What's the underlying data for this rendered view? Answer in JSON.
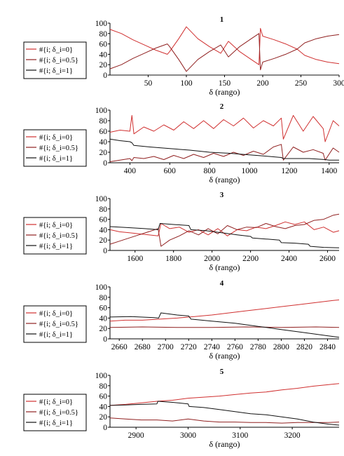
{
  "chart_data": [
    {
      "type": "line",
      "title": "1",
      "xlabel": "δ (rango)",
      "ylabel": "",
      "xlim": [
        0,
        300
      ],
      "ylim": [
        0,
        100
      ],
      "xticks": [
        50,
        100,
        150,
        200,
        250,
        300
      ],
      "yticks": [
        0,
        20,
        40,
        60,
        80,
        100
      ],
      "legend": {
        "placement": "left-outside"
      },
      "series": [
        {
          "name": "#{i; δ_i=0}",
          "color": "#d03030",
          "x": [
            0,
            15,
            30,
            45,
            60,
            75,
            78,
            90,
            100,
            115,
            130,
            145,
            155,
            170,
            185,
            195,
            197,
            200,
            215,
            230,
            245,
            255,
            270,
            285,
            300
          ],
          "values": [
            88,
            80,
            68,
            58,
            48,
            40,
            45,
            70,
            93,
            70,
            55,
            42,
            65,
            45,
            30,
            20,
            90,
            75,
            68,
            60,
            50,
            38,
            30,
            25,
            22
          ]
        },
        {
          "name": "#{i; δ_i=0.5}",
          "color": "#902020",
          "x": [
            0,
            15,
            30,
            45,
            60,
            75,
            78,
            90,
            100,
            115,
            130,
            145,
            155,
            170,
            185,
            195,
            197,
            200,
            215,
            230,
            245,
            255,
            270,
            285,
            300
          ],
          "values": [
            12,
            20,
            32,
            42,
            52,
            60,
            55,
            30,
            7,
            30,
            45,
            58,
            35,
            55,
            70,
            80,
            10,
            25,
            32,
            40,
            50,
            62,
            70,
            75,
            78
          ]
        },
        {
          "name": "#{i; δ_i=1}",
          "color": "#111111",
          "x": [
            0,
            100,
            200,
            300
          ],
          "values": [
            0,
            0,
            0,
            0
          ]
        }
      ]
    },
    {
      "type": "line",
      "title": "2",
      "xlabel": "δ (rango)",
      "ylabel": "",
      "xlim": [
        300,
        1450
      ],
      "ylim": [
        0,
        100
      ],
      "xticks": [
        400,
        600,
        800,
        1000,
        1200,
        1400
      ],
      "yticks": [
        0,
        20,
        40,
        60,
        80,
        100
      ],
      "legend": {
        "placement": "left-outside"
      },
      "series": [
        {
          "name": "#{i; δ_i=0}",
          "color": "#d03030",
          "x": [
            300,
            350,
            400,
            410,
            420,
            470,
            520,
            570,
            620,
            670,
            720,
            770,
            820,
            870,
            920,
            970,
            1020,
            1070,
            1120,
            1160,
            1170,
            1220,
            1270,
            1320,
            1370,
            1380,
            1420,
            1450
          ],
          "values": [
            58,
            62,
            60,
            90,
            55,
            68,
            60,
            72,
            62,
            78,
            65,
            80,
            65,
            82,
            70,
            85,
            66,
            80,
            70,
            85,
            45,
            90,
            60,
            88,
            65,
            40,
            80,
            70
          ]
        },
        {
          "name": "#{i; δ_i=0.5}",
          "color": "#902020",
          "x": [
            300,
            350,
            400,
            410,
            420,
            470,
            520,
            570,
            620,
            670,
            720,
            770,
            820,
            870,
            920,
            970,
            1020,
            1070,
            1120,
            1160,
            1170,
            1220,
            1270,
            1320,
            1370,
            1380,
            1420,
            1450
          ],
          "values": [
            2,
            5,
            8,
            4,
            10,
            8,
            12,
            6,
            14,
            8,
            16,
            10,
            18,
            12,
            20,
            14,
            22,
            16,
            30,
            35,
            5,
            30,
            20,
            25,
            18,
            5,
            28,
            20
          ]
        },
        {
          "name": "#{i; δ_i=1}",
          "color": "#111111",
          "x": [
            300,
            350,
            400,
            410,
            420,
            500,
            600,
            700,
            800,
            900,
            1000,
            1100,
            1160,
            1170,
            1300,
            1380,
            1400,
            1450
          ],
          "values": [
            45,
            42,
            40,
            38,
            33,
            30,
            27,
            24,
            20,
            18,
            15,
            12,
            10,
            8,
            8,
            6,
            5,
            5
          ]
        }
      ]
    },
    {
      "type": "line",
      "title": "3",
      "xlabel": "δ (rango)",
      "ylabel": "",
      "xlim": [
        1470,
        2660
      ],
      "ylim": [
        0,
        100
      ],
      "xticks": [
        1600,
        1800,
        2000,
        2200,
        2400,
        2600
      ],
      "yticks": [
        0,
        20,
        40,
        60,
        80,
        100
      ],
      "legend": {
        "placement": "left-outside"
      },
      "series": [
        {
          "name": "#{i; δ_i=0}",
          "color": "#d03030",
          "x": [
            1470,
            1520,
            1570,
            1620,
            1670,
            1720,
            1735,
            1780,
            1830,
            1880,
            1930,
            1980,
            2030,
            2080,
            2130,
            2180,
            2230,
            2280,
            2330,
            2380,
            2430,
            2480,
            2530,
            2580,
            2630,
            2660
          ],
          "values": [
            40,
            36,
            34,
            32,
            30,
            28,
            52,
            42,
            45,
            35,
            40,
            30,
            42,
            28,
            40,
            38,
            45,
            42,
            48,
            55,
            50,
            55,
            40,
            45,
            35,
            38
          ]
        },
        {
          "name": "#{i; δ_i=0.5}",
          "color": "#902020",
          "x": [
            1470,
            1520,
            1570,
            1620,
            1670,
            1720,
            1735,
            1780,
            1830,
            1880,
            1930,
            1980,
            2030,
            2080,
            2130,
            2180,
            2230,
            2280,
            2330,
            2380,
            2430,
            2480,
            2530,
            2580,
            2630,
            2660
          ],
          "values": [
            12,
            18,
            24,
            30,
            36,
            42,
            8,
            20,
            28,
            38,
            30,
            42,
            32,
            48,
            40,
            45,
            44,
            52,
            46,
            42,
            48,
            50,
            58,
            60,
            68,
            70
          ]
        },
        {
          "name": "#{i; δ_i=1}",
          "color": "#111111",
          "x": [
            1470,
            1560,
            1650,
            1720,
            1730,
            1800,
            1880,
            1890,
            1970,
            2050,
            2130,
            2200,
            2210,
            2280,
            2350,
            2360,
            2430,
            2500,
            2510,
            2580,
            2660
          ],
          "values": [
            46,
            44,
            42,
            40,
            52,
            50,
            48,
            40,
            38,
            34,
            30,
            27,
            24,
            22,
            20,
            15,
            14,
            12,
            8,
            6,
            5
          ]
        }
      ]
    },
    {
      "type": "line",
      "title": "4",
      "xlabel": "δ (rango)",
      "ylabel": "",
      "xlim": [
        2652,
        2850
      ],
      "ylim": [
        0,
        100
      ],
      "xticks": [
        2660,
        2680,
        2700,
        2720,
        2740,
        2760,
        2780,
        2800,
        2820,
        2840
      ],
      "yticks": [
        0,
        20,
        40,
        60,
        80,
        100
      ],
      "legend": {
        "placement": "left-outside"
      },
      "series": [
        {
          "name": "#{i; δ_i=0}",
          "color": "#d03030",
          "x": [
            2652,
            2665,
            2680,
            2695,
            2710,
            2725,
            2740,
            2755,
            2770,
            2785,
            2800,
            2815,
            2830,
            2845,
            2850
          ],
          "values": [
            34,
            36,
            36,
            38,
            40,
            43,
            46,
            50,
            54,
            58,
            62,
            66,
            70,
            74,
            75
          ]
        },
        {
          "name": "#{i; δ_i=0.5}",
          "color": "#902020",
          "x": [
            2652,
            2680,
            2710,
            2740,
            2770,
            2800,
            2830,
            2850
          ],
          "values": [
            22,
            23,
            22,
            22,
            23,
            22,
            23,
            22
          ]
        },
        {
          "name": "#{i; δ_i=1}",
          "color": "#111111",
          "x": [
            2652,
            2670,
            2690,
            2694,
            2696,
            2710,
            2720,
            2722,
            2740,
            2760,
            2780,
            2800,
            2820,
            2840,
            2850
          ],
          "values": [
            42,
            43,
            41,
            40,
            50,
            46,
            44,
            38,
            34,
            30,
            24,
            18,
            12,
            6,
            3
          ]
        }
      ]
    },
    {
      "type": "line",
      "title": "5",
      "xlabel": "δ (rango)",
      "ylabel": "",
      "xlim": [
        2850,
        3290
      ],
      "ylim": [
        0,
        100
      ],
      "xticks": [
        2900,
        3000,
        3100,
        3200
      ],
      "yticks": [
        0,
        20,
        40,
        60,
        80,
        100
      ],
      "legend": {
        "placement": "left-outside"
      },
      "series": [
        {
          "name": "#{i; δ_i=0}",
          "color": "#d03030",
          "x": [
            2850,
            2880,
            2910,
            2940,
            2970,
            3000,
            3030,
            3060,
            3090,
            3120,
            3150,
            3180,
            3210,
            3240,
            3270,
            3290
          ],
          "values": [
            42,
            44,
            47,
            50,
            52,
            56,
            58,
            60,
            63,
            66,
            68,
            72,
            75,
            79,
            82,
            84
          ]
        },
        {
          "name": "#{i; δ_i=0.5}",
          "color": "#902020",
          "x": [
            2850,
            2880,
            2910,
            2940,
            2970,
            3000,
            3030,
            3060,
            3090,
            3120,
            3150,
            3180,
            3210,
            3240,
            3270,
            3290
          ],
          "values": [
            18,
            16,
            14,
            14,
            12,
            16,
            12,
            10,
            10,
            9,
            9,
            8,
            9,
            9,
            9,
            10
          ]
        },
        {
          "name": "#{i; δ_i=1}",
          "color": "#111111",
          "x": [
            2850,
            2880,
            2910,
            2940,
            2942,
            2970,
            3000,
            3002,
            3030,
            3060,
            3090,
            3120,
            3150,
            3180,
            3210,
            3240,
            3270,
            3290
          ],
          "values": [
            42,
            43,
            44,
            45,
            50,
            48,
            45,
            40,
            38,
            34,
            30,
            26,
            24,
            20,
            16,
            10,
            6,
            4
          ]
        }
      ]
    }
  ]
}
